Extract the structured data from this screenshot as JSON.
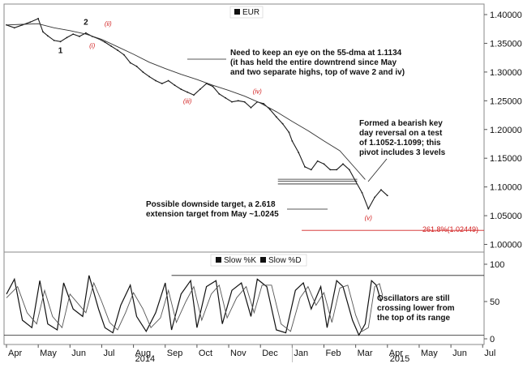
{
  "chart_data": [
    {
      "type": "line",
      "panel": "price",
      "legend": [
        "EUR"
      ],
      "y_ticks": [
        "1.40000",
        "1.35000",
        "1.30000",
        "1.25000",
        "1.20000",
        "1.15000",
        "1.10000",
        "1.05000",
        "1.00000"
      ],
      "ylim": [
        0.99,
        1.41
      ],
      "x_months": [
        "Apr",
        "May",
        "Jun",
        "Jul",
        "Aug",
        "Sep",
        "Oct",
        "Nov",
        "Dec",
        "Jan",
        "Feb",
        "Mar",
        "Apr",
        "May",
        "Jun",
        "Jul"
      ],
      "x_years": [
        "2014",
        "2015"
      ],
      "series": [
        {
          "name": "EUR",
          "x": [
            0,
            0.25,
            0.5,
            0.75,
            1.0,
            1.15,
            1.3,
            1.5,
            1.7,
            1.9,
            2.1,
            2.3,
            2.5,
            2.7,
            2.9,
            3.1,
            3.3,
            3.5,
            3.7,
            3.9,
            4.1,
            4.3,
            4.5,
            4.7,
            4.9,
            5.1,
            5.3,
            5.5,
            5.7,
            5.9,
            6.1,
            6.3,
            6.5,
            6.7,
            6.9,
            7.1,
            7.3,
            7.5,
            7.7,
            7.9,
            8.1,
            8.3,
            8.5,
            8.7,
            8.9,
            9.0,
            9.2,
            9.4,
            9.6,
            9.8,
            10.0,
            10.2,
            10.4,
            10.6,
            10.8,
            11.0,
            11.2,
            11.4,
            11.6,
            11.8,
            12.0
          ],
          "values": [
            1.382,
            1.377,
            1.382,
            1.387,
            1.393,
            1.37,
            1.363,
            1.355,
            1.353,
            1.36,
            1.366,
            1.362,
            1.368,
            1.362,
            1.358,
            1.352,
            1.345,
            1.338,
            1.33,
            1.316,
            1.31,
            1.3,
            1.292,
            1.285,
            1.28,
            1.285,
            1.277,
            1.27,
            1.265,
            1.26,
            1.27,
            1.28,
            1.275,
            1.262,
            1.255,
            1.248,
            1.25,
            1.248,
            1.238,
            1.248,
            1.245,
            1.235,
            1.222,
            1.21,
            1.195,
            1.18,
            1.16,
            1.135,
            1.13,
            1.145,
            1.14,
            1.13,
            1.13,
            1.14,
            1.13,
            1.11,
            1.09,
            1.062,
            1.082,
            1.095,
            1.085
          ]
        },
        {
          "name": "55-dma",
          "x": [
            0,
            0.5,
            1.0,
            1.5,
            2.0,
            2.5,
            3.0,
            3.5,
            4.0,
            4.5,
            5.0,
            5.5,
            6.0,
            6.5,
            7.0,
            7.5,
            8.0,
            8.5,
            9.0,
            9.5,
            10.0,
            10.5,
            11.0,
            11.3
          ],
          "values": [
            1.382,
            1.383,
            1.384,
            1.377,
            1.372,
            1.366,
            1.357,
            1.344,
            1.331,
            1.317,
            1.306,
            1.296,
            1.287,
            1.277,
            1.268,
            1.258,
            1.246,
            1.231,
            1.214,
            1.198,
            1.18,
            1.163,
            1.132,
            1.113
          ]
        }
      ],
      "annotations": {
        "dma_note": [
          "Need to keep an eye on the 55-dma at 1.1134",
          "(it has held the entire downtrend since May",
          "and two separate highs, top of wave 2 and iv)"
        ],
        "reversal_note": [
          "Formed a bearish key",
          "day reversal on a test",
          "of 1.1052-1.1099; this",
          "pivot includes 3 levels"
        ],
        "target_note": [
          "Possible downside target, a 2.618",
          "extension target from May ~1.0245"
        ],
        "target_label": "261.8%(1.02449)",
        "target_level": 1.02449,
        "band_low": 1.1052,
        "band_high": 1.1099,
        "band_upper_line": 1.1134,
        "wave_labels": [
          {
            "text": "1",
            "x": 1.7,
            "y": 1.353,
            "style": "num"
          },
          {
            "text": "2",
            "x": 2.5,
            "y": 1.368,
            "style": "num"
          },
          {
            "text": "(i)",
            "x": 2.7,
            "y": 1.362,
            "style": "roman"
          },
          {
            "text": "(ii)",
            "x": 3.2,
            "y": 1.366,
            "style": "roman"
          },
          {
            "text": "(iii)",
            "x": 5.7,
            "y": 1.265,
            "style": "roman"
          },
          {
            "text": "(iv)",
            "x": 7.9,
            "y": 1.248,
            "style": "roman"
          },
          {
            "text": "(v)",
            "x": 11.4,
            "y": 1.062,
            "style": "roman"
          }
        ]
      }
    },
    {
      "type": "line",
      "panel": "oscillator",
      "legend": [
        "Slow %K",
        "Slow %D"
      ],
      "y_ticks": [
        "100",
        "50",
        "0"
      ],
      "ylim": [
        -10,
        110
      ],
      "upper_line": 85,
      "lower_line": 5,
      "note": [
        "Oscillators are still",
        "crossing lower from",
        "the top of its range"
      ],
      "series": [
        {
          "name": "Slow %K",
          "x": [
            0,
            0.25,
            0.5,
            0.8,
            1.05,
            1.3,
            1.6,
            1.8,
            2.1,
            2.4,
            2.6,
            2.9,
            3.1,
            3.35,
            3.6,
            3.9,
            4.1,
            4.4,
            4.7,
            5.0,
            5.2,
            5.5,
            5.8,
            6.0,
            6.3,
            6.6,
            6.8,
            7.1,
            7.4,
            7.7,
            7.9,
            8.2,
            8.5,
            8.8,
            9.1,
            9.35,
            9.6,
            9.9,
            10.1,
            10.4,
            10.6,
            10.9,
            11.1,
            11.3,
            11.5,
            11.65,
            11.8
          ],
          "values": [
            60,
            80,
            25,
            15,
            78,
            20,
            12,
            75,
            40,
            30,
            85,
            40,
            15,
            8,
            45,
            72,
            30,
            10,
            35,
            75,
            12,
            60,
            78,
            15,
            70,
            78,
            20,
            65,
            75,
            30,
            80,
            70,
            12,
            8,
            65,
            75,
            40,
            70,
            15,
            78,
            70,
            25,
            5,
            20,
            78,
            72,
            50
          ]
        },
        {
          "name": "Slow %D",
          "x": [
            0,
            0.35,
            0.65,
            0.95,
            1.2,
            1.45,
            1.75,
            2.0,
            2.3,
            2.5,
            2.75,
            3.0,
            3.25,
            3.5,
            3.75,
            4.0,
            4.3,
            4.55,
            4.85,
            5.1,
            5.35,
            5.65,
            5.9,
            6.15,
            6.45,
            6.7,
            6.95,
            7.25,
            7.55,
            7.8,
            8.05,
            8.35,
            8.65,
            8.95,
            9.25,
            9.5,
            9.75,
            10.0,
            10.25,
            10.5,
            10.75,
            11.0,
            11.2,
            11.4,
            11.6,
            11.75,
            11.85
          ],
          "values": [
            55,
            70,
            35,
            20,
            65,
            30,
            15,
            60,
            45,
            35,
            75,
            50,
            22,
            12,
            35,
            62,
            40,
            15,
            28,
            65,
            22,
            50,
            70,
            25,
            60,
            72,
            28,
            55,
            70,
            35,
            72,
            72,
            20,
            10,
            55,
            70,
            45,
            62,
            22,
            68,
            72,
            32,
            10,
            15,
            70,
            74,
            58
          ]
        }
      ]
    }
  ]
}
